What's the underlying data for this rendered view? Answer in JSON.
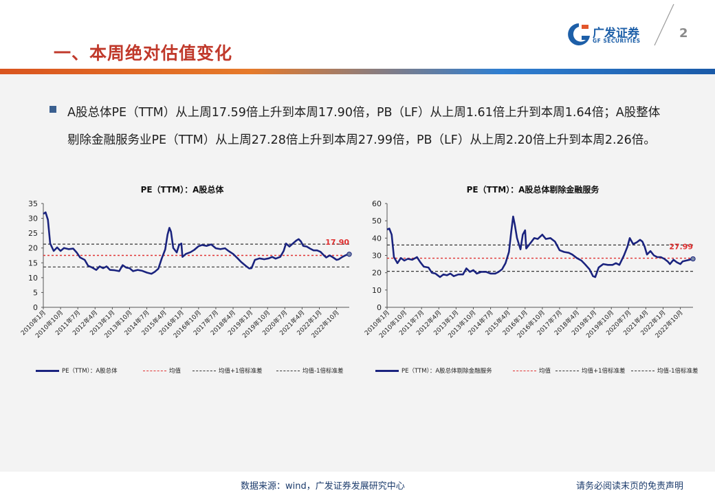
{
  "header": {
    "title": "一、本周绝对估值变化",
    "page_number": "2",
    "logo_cn": "广发证券",
    "logo_en": "GF SECURITIES"
  },
  "summary": {
    "text": "A股总体PE（TTM）从上周17.59倍上升到本周17.90倍，PB（LF）从上周1.61倍上升到本周1.64倍；A股整体剔除金融服务业PE（TTM）从上周27.28倍上升到本周27.99倍，PB（LF）从上周2.20倍上升到本周2.26倍。"
  },
  "footer": {
    "source": "数据来源：wind，广发证券发展研究中心",
    "disclaimer": "请务必阅读末页的免责声明"
  },
  "colors": {
    "series": "#1a237e",
    "mean": "#e03030",
    "band": "#333333",
    "title": "#c0392b"
  },
  "chart_data": [
    {
      "type": "line",
      "title": "PE（TTM）：A股总体",
      "ylim": [
        0,
        35
      ],
      "yticks": [
        "0",
        "5",
        "10",
        "15",
        "20",
        "25",
        "30",
        "35"
      ],
      "xtick_labels": [
        "2010年1月",
        "2010年10月",
        "2011年7月",
        "2012年4月",
        "2013年1月",
        "2013年10月",
        "2014年7月",
        "2015年4月",
        "2016年1月",
        "2016年10月",
        "2017年7月",
        "2018年4月",
        "2019年1月",
        "2019年10月",
        "2020年7月",
        "2021年4月",
        "2022年1月",
        "2022年10月"
      ],
      "x_start": 2010.0,
      "x_end": 2023.3,
      "series": [
        {
          "name": "PE（TTM）：A股总体",
          "points": [
            [
              2010.0,
              31.5
            ],
            [
              2010.1,
              32.0
            ],
            [
              2010.2,
              29.5
            ],
            [
              2010.3,
              21.5
            ],
            [
              2010.45,
              19.0
            ],
            [
              2010.6,
              20.2
            ],
            [
              2010.75,
              19.0
            ],
            [
              2010.9,
              20.0
            ],
            [
              2011.1,
              19.6
            ],
            [
              2011.3,
              19.8
            ],
            [
              2011.45,
              18.5
            ],
            [
              2011.6,
              16.8
            ],
            [
              2011.8,
              16.0
            ],
            [
              2011.95,
              14.0
            ],
            [
              2012.1,
              13.5
            ],
            [
              2012.3,
              12.6
            ],
            [
              2012.45,
              13.8
            ],
            [
              2012.6,
              13.2
            ],
            [
              2012.75,
              13.8
            ],
            [
              2012.9,
              12.6
            ],
            [
              2013.1,
              12.5
            ],
            [
              2013.3,
              12.2
            ],
            [
              2013.45,
              14.2
            ],
            [
              2013.6,
              13.4
            ],
            [
              2013.75,
              13.2
            ],
            [
              2013.9,
              12.2
            ],
            [
              2014.1,
              12.6
            ],
            [
              2014.3,
              12.3
            ],
            [
              2014.5,
              11.7
            ],
            [
              2014.7,
              11.3
            ],
            [
              2014.85,
              12.0
            ],
            [
              2015.0,
              13.0
            ],
            [
              2015.15,
              16.5
            ],
            [
              2015.3,
              19.5
            ],
            [
              2015.4,
              24.5
            ],
            [
              2015.48,
              26.8
            ],
            [
              2015.55,
              25.5
            ],
            [
              2015.65,
              20.0
            ],
            [
              2015.8,
              18.5
            ],
            [
              2015.9,
              21.0
            ],
            [
              2016.0,
              21.5
            ],
            [
              2016.05,
              17.0
            ],
            [
              2016.2,
              18.0
            ],
            [
              2016.4,
              18.6
            ],
            [
              2016.55,
              19.3
            ],
            [
              2016.75,
              20.6
            ],
            [
              2016.9,
              21.0
            ],
            [
              2017.1,
              20.7
            ],
            [
              2017.3,
              21.2
            ],
            [
              2017.5,
              19.9
            ],
            [
              2017.7,
              19.6
            ],
            [
              2017.9,
              19.9
            ],
            [
              2018.05,
              19.0
            ],
            [
              2018.25,
              18.0
            ],
            [
              2018.45,
              16.5
            ],
            [
              2018.6,
              15.3
            ],
            [
              2018.8,
              14.0
            ],
            [
              2018.95,
              13.1
            ],
            [
              2019.05,
              13.2
            ],
            [
              2019.2,
              16.0
            ],
            [
              2019.4,
              16.5
            ],
            [
              2019.6,
              16.2
            ],
            [
              2019.8,
              16.5
            ],
            [
              2019.95,
              17.0
            ],
            [
              2020.1,
              16.4
            ],
            [
              2020.3,
              17.0
            ],
            [
              2020.45,
              19.0
            ],
            [
              2020.55,
              21.5
            ],
            [
              2020.7,
              20.5
            ],
            [
              2020.85,
              21.5
            ],
            [
              2021.0,
              22.5
            ],
            [
              2021.1,
              23.0
            ],
            [
              2021.2,
              22.2
            ],
            [
              2021.3,
              20.7
            ],
            [
              2021.45,
              20.5
            ],
            [
              2021.6,
              19.8
            ],
            [
              2021.75,
              19.2
            ],
            [
              2021.9,
              19.2
            ],
            [
              2022.05,
              18.7
            ],
            [
              2022.2,
              17.5
            ],
            [
              2022.3,
              16.8
            ],
            [
              2022.45,
              17.5
            ],
            [
              2022.6,
              16.8
            ],
            [
              2022.75,
              16.0
            ],
            [
              2022.85,
              16.2
            ],
            [
              2023.0,
              17.0
            ],
            [
              2023.15,
              17.6
            ],
            [
              2023.3,
              17.9
            ]
          ]
        }
      ],
      "reference_lines": {
        "mean": 17.5,
        "plus_1sd": 21.3,
        "minus_1sd": 13.6
      },
      "latest_value_label": "17.90",
      "legend": [
        "PE（TTM）：A股总体",
        "均值",
        "均值+1倍标准差",
        "均值-1倍标准差"
      ]
    },
    {
      "type": "line",
      "title": "PE（TTM）：A股总体剔除金融服务",
      "ylim": [
        0,
        60
      ],
      "yticks": [
        "0",
        "10",
        "20",
        "30",
        "40",
        "50",
        "60"
      ],
      "xtick_labels": [
        "2010年1月",
        "2010年10月",
        "2011年7月",
        "2012年4月",
        "2013年1月",
        "2013年10月",
        "2014年7月",
        "2015年4月",
        "2016年1月",
        "2016年10月",
        "2017年7月",
        "2018年4月",
        "2019年1月",
        "2019年10月",
        "2020年7月",
        "2021年4月",
        "2022年1月",
        "2022年10月"
      ],
      "x_start": 2010.0,
      "x_end": 2023.3,
      "series": [
        {
          "name": "PE（TTM）：A股总体剔除金融服务",
          "points": [
            [
              2010.0,
              45.0
            ],
            [
              2010.1,
              45.5
            ],
            [
              2010.2,
              42.0
            ],
            [
              2010.3,
              29.0
            ],
            [
              2010.45,
              25.5
            ],
            [
              2010.6,
              28.5
            ],
            [
              2010.75,
              27.0
            ],
            [
              2010.9,
              28.0
            ],
            [
              2011.1,
              27.5
            ],
            [
              2011.3,
              29.0
            ],
            [
              2011.45,
              26.0
            ],
            [
              2011.6,
              23.5
            ],
            [
              2011.8,
              23.0
            ],
            [
              2011.95,
              20.0
            ],
            [
              2012.1,
              19.5
            ],
            [
              2012.3,
              17.5
            ],
            [
              2012.45,
              19.0
            ],
            [
              2012.6,
              18.5
            ],
            [
              2012.75,
              19.5
            ],
            [
              2012.9,
              18.0
            ],
            [
              2013.1,
              19.0
            ],
            [
              2013.3,
              19.0
            ],
            [
              2013.45,
              22.5
            ],
            [
              2013.6,
              20.5
            ],
            [
              2013.75,
              21.5
            ],
            [
              2013.9,
              19.5
            ],
            [
              2014.1,
              20.5
            ],
            [
              2014.3,
              20.5
            ],
            [
              2014.5,
              19.5
            ],
            [
              2014.7,
              19.5
            ],
            [
              2014.85,
              20.5
            ],
            [
              2015.0,
              22.0
            ],
            [
              2015.15,
              25.5
            ],
            [
              2015.3,
              32.0
            ],
            [
              2015.4,
              44.0
            ],
            [
              2015.48,
              52.5
            ],
            [
              2015.55,
              48.0
            ],
            [
              2015.65,
              40.0
            ],
            [
              2015.8,
              33.5
            ],
            [
              2015.9,
              42.0
            ],
            [
              2016.0,
              44.5
            ],
            [
              2016.05,
              34.0
            ],
            [
              2016.2,
              36.5
            ],
            [
              2016.4,
              40.0
            ],
            [
              2016.55,
              39.5
            ],
            [
              2016.75,
              42.0
            ],
            [
              2016.9,
              39.5
            ],
            [
              2017.1,
              40.0
            ],
            [
              2017.3,
              38.0
            ],
            [
              2017.5,
              33.0
            ],
            [
              2017.7,
              32.0
            ],
            [
              2017.9,
              31.5
            ],
            [
              2018.05,
              30.5
            ],
            [
              2018.25,
              28.5
            ],
            [
              2018.45,
              27.0
            ],
            [
              2018.6,
              25.0
            ],
            [
              2018.8,
              22.0
            ],
            [
              2018.95,
              18.0
            ],
            [
              2019.05,
              17.5
            ],
            [
              2019.2,
              23.0
            ],
            [
              2019.4,
              25.0
            ],
            [
              2019.6,
              24.5
            ],
            [
              2019.8,
              24.5
            ],
            [
              2019.95,
              25.5
            ],
            [
              2020.1,
              24.5
            ],
            [
              2020.3,
              30.0
            ],
            [
              2020.45,
              35.0
            ],
            [
              2020.55,
              40.0
            ],
            [
              2020.7,
              36.5
            ],
            [
              2020.85,
              37.5
            ],
            [
              2021.0,
              39.0
            ],
            [
              2021.1,
              38.0
            ],
            [
              2021.2,
              35.0
            ],
            [
              2021.3,
              30.5
            ],
            [
              2021.45,
              32.5
            ],
            [
              2021.6,
              30.0
            ],
            [
              2021.75,
              29.0
            ],
            [
              2021.9,
              29.0
            ],
            [
              2022.05,
              28.0
            ],
            [
              2022.2,
              26.5
            ],
            [
              2022.3,
              25.0
            ],
            [
              2022.45,
              27.5
            ],
            [
              2022.6,
              26.0
            ],
            [
              2022.75,
              25.0
            ],
            [
              2022.85,
              26.5
            ],
            [
              2023.0,
              27.0
            ],
            [
              2023.15,
              27.5
            ],
            [
              2023.3,
              28.0
            ]
          ]
        }
      ],
      "reference_lines": {
        "mean": 28.4,
        "plus_1sd": 36.0,
        "minus_1sd": 20.8
      },
      "latest_value_label": "27.99",
      "legend": [
        "PE（TTM）：A股总体剔除金融服务",
        "均值",
        "均值+1倍标准差",
        "均值-1倍标准差"
      ]
    }
  ]
}
